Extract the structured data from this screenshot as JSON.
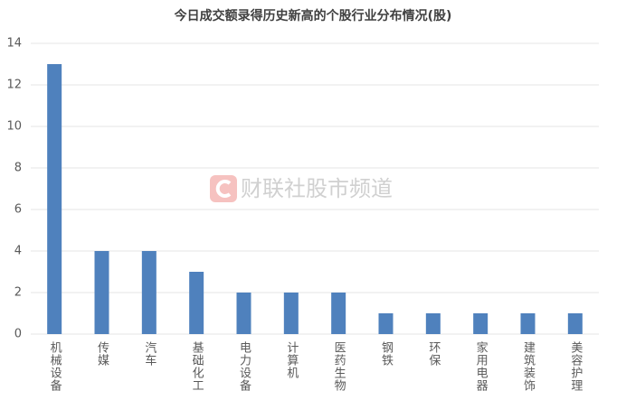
{
  "chart_data": {
    "type": "bar",
    "title": "今日成交额录得历史新高的个股行业分布情况(股)",
    "watermark": "财联社股市频道",
    "categories": [
      "机械设备",
      "传媒",
      "汽车",
      "基础化工",
      "电力设备",
      "计算机",
      "医药生物",
      "钢铁",
      "环保",
      "家用电器",
      "建筑装饰",
      "美容护理"
    ],
    "values": [
      13,
      4,
      4,
      3,
      2,
      2,
      2,
      1,
      1,
      1,
      1,
      1
    ],
    "color": "#4f81bd",
    "ylim": [
      0,
      14
    ],
    "yticks": [
      0,
      2,
      4,
      6,
      8,
      10,
      12,
      14
    ],
    "grid": true
  }
}
